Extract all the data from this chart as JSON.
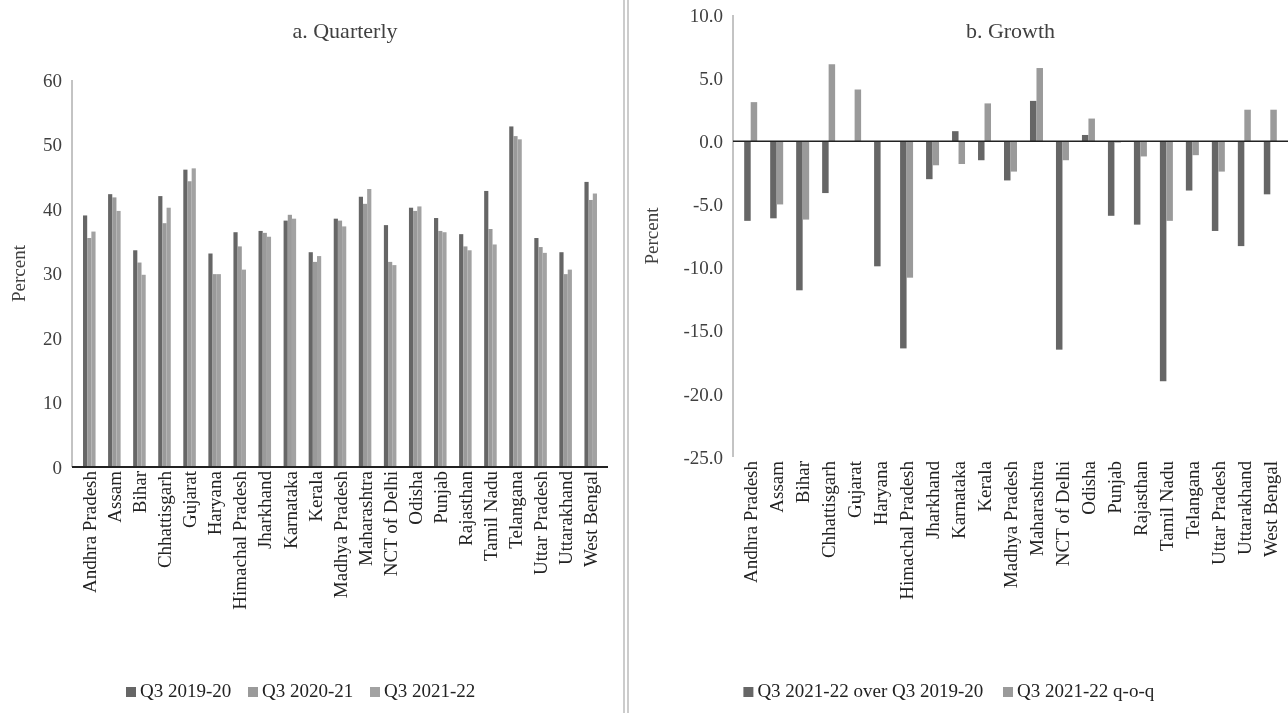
{
  "chart_data": [
    {
      "type": "bar",
      "title": "a. Quarterly",
      "ylabel": "Percent",
      "categories": [
        "Andhra Pradesh",
        "Assam",
        "Bihar",
        "Chhattisgarh",
        "Gujarat",
        "Haryana",
        "Himachal Pradesh",
        "Jharkhand",
        "Karnataka",
        "Kerala",
        "Madhya Pradesh",
        "Maharashtra",
        "NCT of Delhi",
        "Odisha",
        "Punjab",
        "Rajasthan",
        "Tamil Nadu",
        "Telangana",
        "Uttar Pradesh",
        "Uttarakhand",
        "West Bengal"
      ],
      "series": [
        {
          "name": "Q3 2019-20",
          "color": "#666666",
          "values": [
            39,
            42.3,
            33.6,
            42,
            46.1,
            33.1,
            36.4,
            36.6,
            38.2,
            33.3,
            38.5,
            41.9,
            37.5,
            40.2,
            38.6,
            36.1,
            42.8,
            52.8,
            35.5,
            33.3,
            44.2
          ]
        },
        {
          "name": "Q3 2020-21",
          "color": "#9a9a9a",
          "values": [
            35.5,
            41.8,
            31.7,
            37.8,
            44.3,
            29.9,
            34.2,
            36.3,
            39.1,
            31.8,
            38.2,
            40.8,
            31.8,
            39.7,
            36.6,
            34.2,
            36.9,
            51.3,
            34.1,
            29.9,
            41.4
          ]
        },
        {
          "name": "Q3 2021-22",
          "color": "#a2a2a2",
          "values": [
            36.5,
            39.7,
            29.8,
            40.2,
            46.3,
            29.9,
            30.6,
            35.7,
            38.5,
            32.7,
            37.3,
            43.1,
            31.3,
            40.4,
            36.4,
            33.6,
            34.5,
            50.8,
            33.2,
            30.6,
            42.4
          ]
        }
      ],
      "ylim": [
        0,
        60
      ],
      "yticks": [
        0,
        10,
        20,
        30,
        40,
        50,
        60
      ],
      "legend": "bottom"
    },
    {
      "type": "bar",
      "title": "b. Growth",
      "ylabel": "Percent",
      "categories": [
        "Andhra Pradesh",
        "Assam",
        "Bihar",
        "Chhattisgarh",
        "Gujarat",
        "Haryana",
        "Himachal Pradesh",
        "Jharkhand",
        "Karnataka",
        "Kerala",
        "Madhya Pradesh",
        "Maharashtra",
        "NCT of Delhi",
        "Odisha",
        "Punjab",
        "Rajasthan",
        "Tamil Nadu",
        "Telangana",
        "Uttar Pradesh",
        "Uttarakhand",
        "West Bengal"
      ],
      "series": [
        {
          "name": "Q3 2021-22 over Q3 2019-20",
          "color": "#666666",
          "values": [
            -6.3,
            -6.1,
            -11.8,
            -4.1,
            0,
            -9.9,
            -16.4,
            -3,
            0.8,
            -1.5,
            -3.1,
            3.2,
            -16.5,
            0.5,
            -5.9,
            -6.6,
            -19,
            -3.9,
            -7.1,
            -8.3,
            -4.2
          ]
        },
        {
          "name": "Q3 2021-22 q-o-q",
          "color": "#9a9a9a",
          "values": [
            3.1,
            -5,
            -6.2,
            6.1,
            4.1,
            0,
            -10.8,
            -1.9,
            -1.8,
            3,
            -2.4,
            5.8,
            -1.5,
            1.8,
            -0.1,
            -1.2,
            -6.3,
            -1.1,
            -2.4,
            2.5,
            2.5
          ]
        }
      ],
      "ylim": [
        -25,
        10
      ],
      "yticks": [
        {
          "value": -25,
          "label": "-25.0"
        },
        {
          "value": -20,
          "label": "-20.0"
        },
        {
          "value": -15,
          "label": "-15.0"
        },
        {
          "value": -10,
          "label": "-10.0"
        },
        {
          "value": -5,
          "label": "-5.0"
        },
        {
          "value": 0,
          "label": "0.0"
        },
        {
          "value": 5,
          "label": "5.0"
        },
        {
          "value": 10,
          "label": "10.0"
        }
      ],
      "legend": "bottom"
    }
  ]
}
